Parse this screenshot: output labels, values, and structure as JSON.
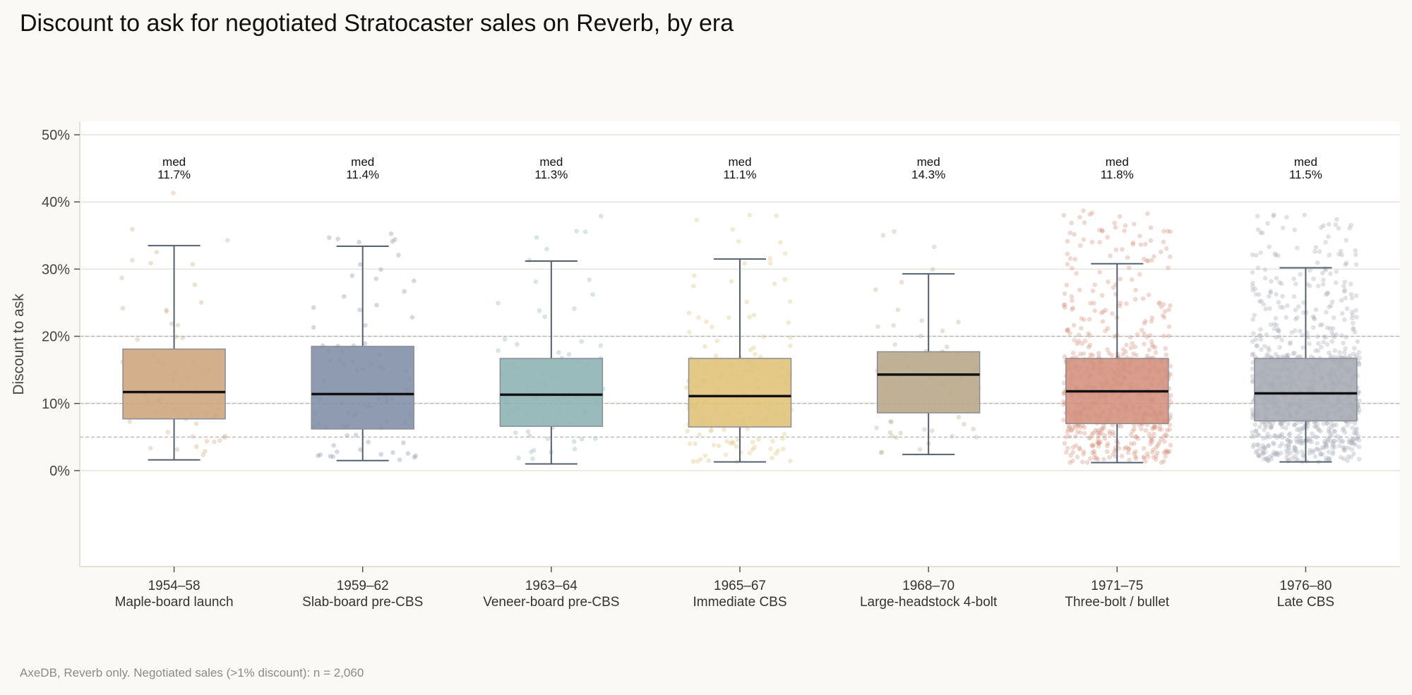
{
  "chart_data": {
    "type": "box",
    "title": "Discount to ask for negotiated Stratocaster sales on Reverb, by era",
    "ylabel": "Discount to ask",
    "xlabel": "",
    "ylim": [
      -2,
      52
    ],
    "yticks": [
      0,
      10,
      20,
      30,
      40,
      50
    ],
    "ytick_labels": [
      "0%",
      "10%",
      "20%",
      "30%",
      "40%",
      "50%"
    ],
    "reference_lines": [
      5,
      10,
      20
    ],
    "grid": true,
    "median_label_prefix": "med",
    "footnote": "AxeDB, Reverb only. Negotiated sales (>1% discount): n = 2,060",
    "categories": [
      {
        "era": "1954–58",
        "name": "Maple-board launch",
        "color": "#cfa680",
        "whisker_low": 1.6,
        "q1": 7.7,
        "median": 11.7,
        "q3": 18.1,
        "whisker_high": 33.5,
        "median_label": "11.7%"
      },
      {
        "era": "1959–62",
        "name": "Slab-board pre-CBS",
        "color": "#8290a8",
        "whisker_low": 1.5,
        "q1": 6.2,
        "median": 11.4,
        "q3": 18.5,
        "whisker_high": 33.4,
        "median_label": "11.4%"
      },
      {
        "era": "1963–64",
        "name": "Veneer-board pre-CBS",
        "color": "#8fb4b4",
        "whisker_low": 1.0,
        "q1": 6.6,
        "median": 11.3,
        "q3": 16.7,
        "whisker_high": 31.2,
        "median_label": "11.3%"
      },
      {
        "era": "1965–67",
        "name": "Immediate CBS",
        "color": "#e0c27a",
        "whisker_low": 1.3,
        "q1": 6.5,
        "median": 11.1,
        "q3": 16.7,
        "whisker_high": 31.5,
        "median_label": "11.1%"
      },
      {
        "era": "1968–70",
        "name": "Large-headstock 4-bolt",
        "color": "#b9a98b",
        "whisker_low": 2.4,
        "q1": 8.6,
        "median": 14.3,
        "q3": 17.7,
        "whisker_high": 29.3,
        "median_label": "14.3%"
      },
      {
        "era": "1971–75",
        "name": "Three-bolt / bullet",
        "color": "#d4927f",
        "whisker_low": 1.2,
        "q1": 7.0,
        "median": 11.8,
        "q3": 16.7,
        "whisker_high": 30.8,
        "median_label": "11.8%"
      },
      {
        "era": "1976–80",
        "name": "Late CBS",
        "color": "#a8acb6",
        "whisker_low": 1.3,
        "q1": 7.4,
        "median": 11.5,
        "q3": 16.7,
        "whisker_high": 30.2,
        "median_label": "11.5%"
      }
    ]
  }
}
